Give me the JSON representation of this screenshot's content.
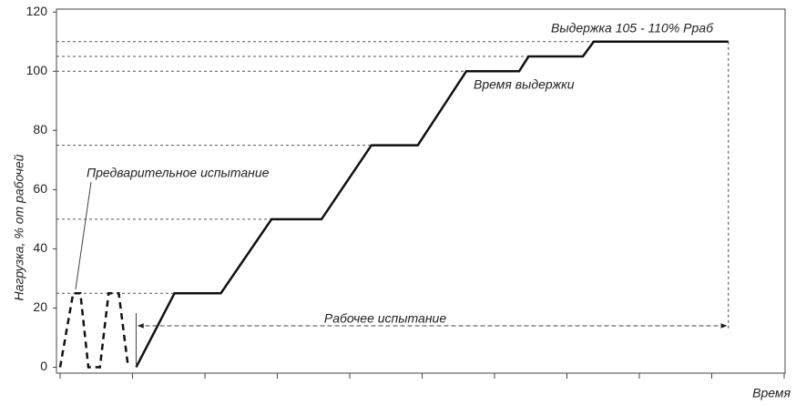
{
  "chart_data": {
    "type": "line",
    "ylabel": "Нагрузка, % от рабочей",
    "xlabel": "Время",
    "ylim": [
      -2,
      121
    ],
    "yticks": [
      0,
      20,
      40,
      60,
      80,
      100,
      120
    ],
    "xlim": [
      0,
      10
    ],
    "xticks": [
      0,
      1,
      2,
      3,
      4,
      5,
      6,
      7,
      8,
      9,
      10
    ],
    "hlines": [
      25,
      50,
      75,
      100,
      105,
      110
    ],
    "series": [
      {
        "color": "#111111",
        "dash": true,
        "x": [
          0,
          0.18,
          0.28,
          0.39,
          0.55,
          0.67,
          0.81,
          0.94
        ],
        "values": [
          0,
          25,
          25,
          0,
          0,
          25,
          25,
          0
        ]
      },
      {
        "color": "#111111",
        "dash": false,
        "x": [
          1.05,
          1.58,
          2.22,
          2.92,
          3.61,
          4.3,
          4.94,
          5.61,
          6.34,
          6.47,
          7.22,
          7.37,
          9.23
        ],
        "values": [
          0,
          25,
          25,
          50,
          50,
          75,
          75,
          100,
          100,
          105,
          105,
          110,
          110
        ]
      }
    ],
    "annotations": {
      "hold_level": "Выдержка 105 - 110% Рраб",
      "hold_time": "Время выдержки",
      "preliminary": "Предварительное испытание",
      "working": "Рабочее испытание"
    }
  }
}
